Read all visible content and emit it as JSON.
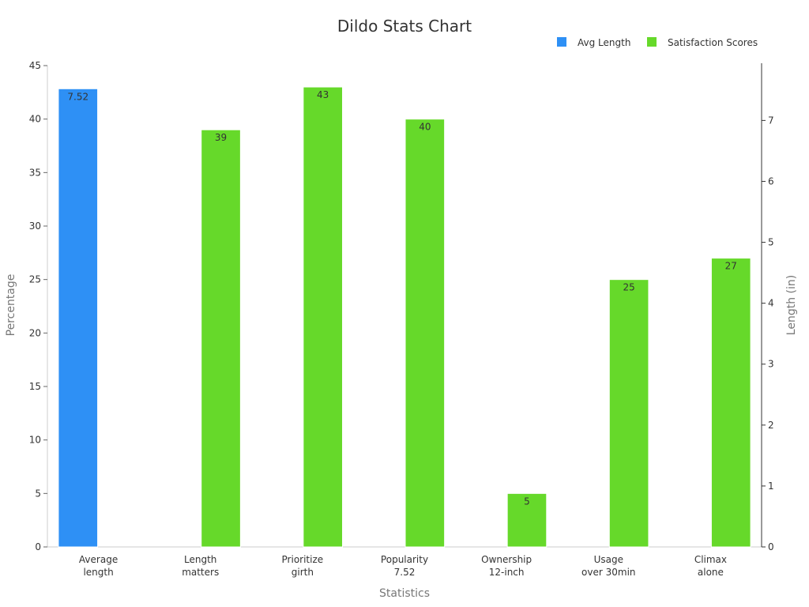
{
  "chart_data": {
    "type": "bar",
    "title": "Dildo Stats Chart",
    "xlabel": "Statistics",
    "ylabel": "Percentage",
    "y2label": "Length (in)",
    "ylim": [
      0,
      45
    ],
    "y2lim": [
      0,
      7.9
    ],
    "yticks": [
      0,
      5,
      10,
      15,
      20,
      25,
      30,
      35,
      40,
      45
    ],
    "y2ticks": [
      0,
      1,
      2,
      3,
      4,
      5,
      6,
      7
    ],
    "legend_position": "top-right",
    "categories": [
      [
        "Average",
        "length"
      ],
      [
        "Length",
        "matters"
      ],
      [
        "Prioritize",
        "girth"
      ],
      [
        "Popularity",
        "7.52"
      ],
      [
        "Ownership",
        "12-inch"
      ],
      [
        "Usage",
        "over 30min"
      ],
      [
        "Climax",
        "alone"
      ]
    ],
    "series": [
      {
        "name": "Avg Length",
        "axis": "right",
        "color": "#2e90f5",
        "values": [
          7.52,
          null,
          null,
          null,
          null,
          null,
          null
        ],
        "labels": [
          "7.52",
          null,
          null,
          null,
          null,
          null,
          null
        ]
      },
      {
        "name": "Satisfaction Scores",
        "axis": "left",
        "color": "#66d92a",
        "values": [
          null,
          39,
          43,
          40,
          5,
          25,
          27
        ],
        "labels": [
          null,
          "39",
          "43",
          "40",
          "5",
          "25",
          "27"
        ]
      }
    ]
  }
}
